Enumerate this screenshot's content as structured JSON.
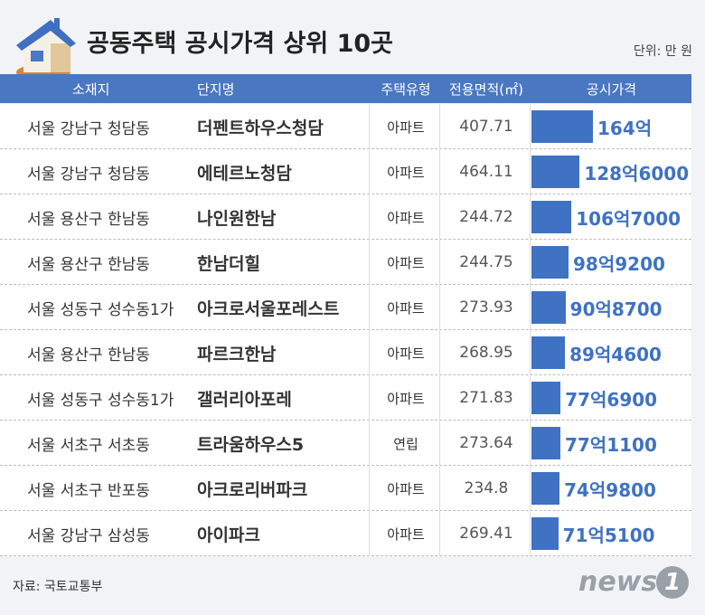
{
  "header": {
    "title": "공동주택 공시가격 상위 10곳",
    "unit": "단위: 만 원"
  },
  "table": {
    "columns": [
      "소재지",
      "단지명",
      "주택유형",
      "전용면적(㎡)",
      "공시가격"
    ],
    "rows": [
      [
        "서울 강남구 청담동",
        "더펜트하우스청담",
        "아파트",
        407.71
      ],
      [
        "서울 강남구 청담동",
        "에테르노청담",
        "아파트",
        464.11
      ],
      [
        "서울 용산구 한남동",
        "나인원한남",
        "아파트",
        244.72
      ],
      [
        "서울 용산구 한남동",
        "한남더힐",
        "아파트",
        244.75
      ],
      [
        "서울 성동구 성수동1가",
        "아크로서울포레스트",
        "아파트",
        273.93
      ],
      [
        "서울 용산구 한남동",
        "파르크한남",
        "아파트",
        268.95
      ],
      [
        "서울 성동구 성수동1가",
        "갤러리아포레",
        "아파트",
        271.83
      ],
      [
        "서울 서초구 서초동",
        "트라움하우스5",
        "연립",
        273.64
      ],
      [
        "서울 서초구 반포동",
        "아크로리버파크",
        "아파트",
        234.8
      ],
      [
        "서울 강남구 삼성동",
        "아이파크",
        "아파트",
        269.41
      ]
    ]
  },
  "chart_data": {
    "type": "bar",
    "orientation": "horizontal",
    "color": "#3f72c2",
    "values": [
      1640000,
      1286000,
      1067000,
      989200,
      908700,
      894600,
      776900,
      771100,
      749800,
      715100
    ],
    "value_labels": [
      "164억",
      "128억6000",
      "106억7000",
      "98억9200",
      "90억8700",
      "89억4600",
      "77억6900",
      "77억1100",
      "74억9800",
      "71억5100"
    ]
  },
  "footer": {
    "source": "자료: 국토교통부",
    "logo": {
      "text": "news",
      "mark": "1"
    }
  }
}
